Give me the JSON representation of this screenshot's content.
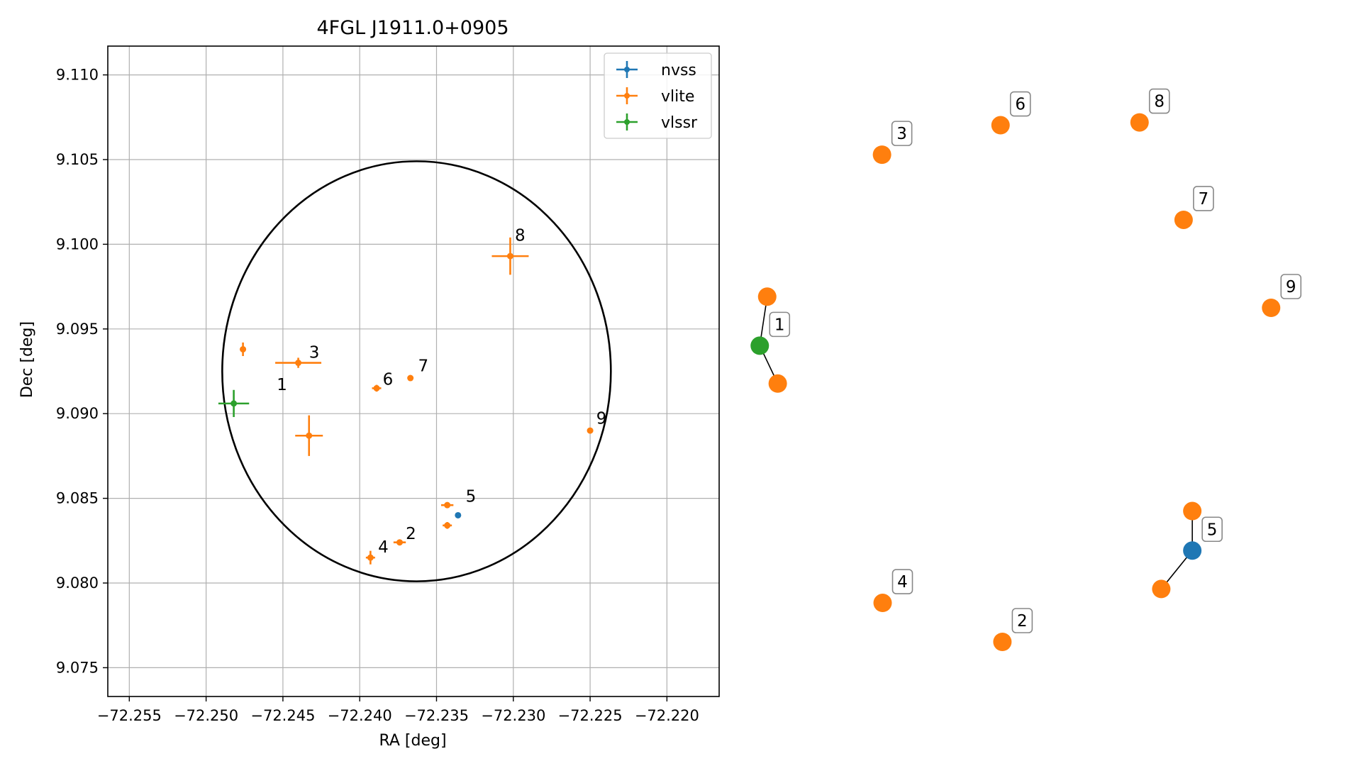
{
  "chart_data": [
    {
      "type": "scatter",
      "title": "4FGL J1911.0+0905",
      "xlabel": "RA [deg]",
      "ylabel": "Dec [deg]",
      "xlim": [
        -72.2564,
        -72.2166
      ],
      "ylim": [
        9.0733,
        9.1117
      ],
      "xticks": [
        -72.255,
        -72.25,
        -72.245,
        -72.24,
        -72.235,
        -72.23,
        -72.225,
        -72.22
      ],
      "xtick_labels": [
        "−72.255",
        "−72.250",
        "−72.245",
        "−72.240",
        "−72.235",
        "−72.230",
        "−72.225",
        "−72.220"
      ],
      "yticks": [
        9.075,
        9.08,
        9.085,
        9.09,
        9.095,
        9.1,
        9.105,
        9.11
      ],
      "ytick_labels": [
        "9.075",
        "9.080",
        "9.085",
        "9.090",
        "9.095",
        "9.100",
        "9.105",
        "9.110"
      ],
      "grid": true,
      "legend_position": "top-right",
      "ellipse": {
        "center_ra": -72.2363,
        "center_dec": 9.0925,
        "radius_ra": 0.01265,
        "radius_dec": 0.0124,
        "color": "#000000"
      },
      "series": [
        {
          "name": "nvss",
          "color": "#1f77b4",
          "points": [
            {
              "ra": -72.2336,
              "dec": 9.084,
              "ra_err": 0.0,
              "dec_err": 0.0
            }
          ]
        },
        {
          "name": "vlite",
          "color": "#ff7f0e",
          "points": [
            {
              "ra": -72.2476,
              "dec": 9.0938,
              "ra_err": 0.0002,
              "dec_err": 0.0004
            },
            {
              "ra": -72.244,
              "dec": 9.093,
              "ra_err": 0.0015,
              "dec_err": 0.0003
            },
            {
              "ra": -72.2433,
              "dec": 9.0887,
              "ra_err": 0.0009,
              "dec_err": 0.0012
            },
            {
              "ra": -72.2389,
              "dec": 9.0915,
              "ra_err": 0.0003,
              "dec_err": 0.0002
            },
            {
              "ra": -72.2367,
              "dec": 9.0921,
              "ra_err": 0.0001,
              "dec_err": 0.0001
            },
            {
              "ra": -72.2302,
              "dec": 9.0993,
              "ra_err": 0.0012,
              "dec_err": 0.0011
            },
            {
              "ra": -72.225,
              "dec": 9.089,
              "ra_err": 0.0001,
              "dec_err": 0.0001
            },
            {
              "ra": -72.2343,
              "dec": 9.0846,
              "ra_err": 0.0004,
              "dec_err": 0.0001
            },
            {
              "ra": -72.2343,
              "dec": 9.0834,
              "ra_err": 0.0003,
              "dec_err": 0.0002
            },
            {
              "ra": -72.2374,
              "dec": 9.0824,
              "ra_err": 0.0004,
              "dec_err": 0.0001
            },
            {
              "ra": -72.2393,
              "dec": 9.0815,
              "ra_err": 0.0003,
              "dec_err": 0.0004
            }
          ]
        },
        {
          "name": "vlssr",
          "color": "#2ca02c",
          "points": [
            {
              "ra": -72.2482,
              "dec": 9.0906,
              "ra_err": 0.001,
              "dec_err": 0.0008
            }
          ]
        }
      ],
      "annotations": [
        {
          "text": "1",
          "ra": -72.2454,
          "dec": 9.0914
        },
        {
          "text": "2",
          "ra": -72.237,
          "dec": 9.0826
        },
        {
          "text": "3",
          "ra": -72.2433,
          "dec": 9.0933
        },
        {
          "text": "4",
          "ra": -72.2388,
          "dec": 9.0818
        },
        {
          "text": "5",
          "ra": -72.2331,
          "dec": 9.0848
        },
        {
          "text": "6",
          "ra": -72.2385,
          "dec": 9.0917
        },
        {
          "text": "7",
          "ra": -72.2362,
          "dec": 9.0925
        },
        {
          "text": "8",
          "ra": -72.2299,
          "dec": 9.1002
        },
        {
          "text": "9",
          "ra": -72.2246,
          "dec": 9.0894
        }
      ]
    },
    {
      "type": "network",
      "nodes": [
        {
          "id": "vlite-a",
          "color": "#ff7f0e",
          "x": 0.042,
          "y": 0.38
        },
        {
          "id": "vlssr-1",
          "color": "#2ca02c",
          "x": 0.03,
          "y": 0.468
        },
        {
          "id": "vlite-b",
          "color": "#ff7f0e",
          "x": 0.059,
          "y": 0.536
        },
        {
          "id": "vlite-3",
          "color": "#ff7f0e",
          "x": 0.227,
          "y": 0.125
        },
        {
          "id": "vlite-6",
          "color": "#ff7f0e",
          "x": 0.418,
          "y": 0.072
        },
        {
          "id": "vlite-8",
          "color": "#ff7f0e",
          "x": 0.642,
          "y": 0.067
        },
        {
          "id": "vlite-7",
          "color": "#ff7f0e",
          "x": 0.713,
          "y": 0.242
        },
        {
          "id": "vlite-9",
          "color": "#ff7f0e",
          "x": 0.854,
          "y": 0.4
        },
        {
          "id": "vlite-5a",
          "color": "#ff7f0e",
          "x": 0.727,
          "y": 0.765
        },
        {
          "id": "nvss-5",
          "color": "#1f77b4",
          "x": 0.727,
          "y": 0.836
        },
        {
          "id": "vlite-5b",
          "color": "#ff7f0e",
          "x": 0.677,
          "y": 0.905
        },
        {
          "id": "vlite-4",
          "color": "#ff7f0e",
          "x": 0.228,
          "y": 0.93
        },
        {
          "id": "vlite-2",
          "color": "#ff7f0e",
          "x": 0.421,
          "y": 1.0
        }
      ],
      "edges": [
        [
          "vlite-a",
          "vlssr-1"
        ],
        [
          "vlssr-1",
          "vlite-b"
        ],
        [
          "vlite-5a",
          "nvss-5"
        ],
        [
          "nvss-5",
          "vlite-5b"
        ]
      ],
      "labels": [
        {
          "text": "1",
          "node": "vlssr-1"
        },
        {
          "text": "3",
          "node": "vlite-3"
        },
        {
          "text": "6",
          "node": "vlite-6"
        },
        {
          "text": "8",
          "node": "vlite-8"
        },
        {
          "text": "7",
          "node": "vlite-7"
        },
        {
          "text": "9",
          "node": "vlite-9"
        },
        {
          "text": "5",
          "node": "nvss-5"
        },
        {
          "text": "4",
          "node": "vlite-4"
        },
        {
          "text": "2",
          "node": "vlite-2"
        }
      ]
    }
  ]
}
